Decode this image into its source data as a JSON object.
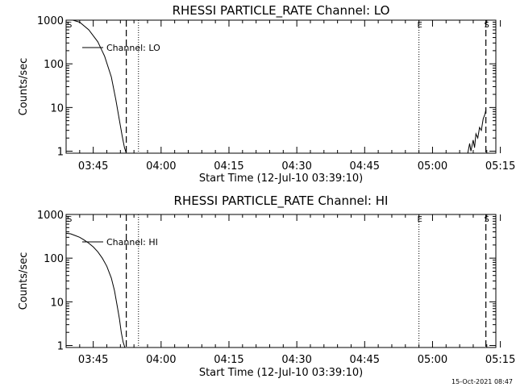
{
  "chart_data": [
    {
      "type": "line",
      "title": "RHESSI PARTICLE_RATE Channel: LO",
      "xlabel": "Start Time (12-Jul-10 03:39:10)",
      "ylabel": "Counts/sec",
      "y_scale": "log",
      "ylim": [
        0.9,
        1000
      ],
      "y_ticks": [
        1,
        10,
        100,
        1000
      ],
      "y_tick_labels": [
        "1",
        "10",
        "100",
        "1000"
      ],
      "xlim_min": [
        0,
        95
      ],
      "x_ticks": [
        6,
        21,
        36,
        51,
        66,
        81,
        96
      ],
      "x_tick_labels": [
        "03:45",
        "04:00",
        "04:15",
        "04:30",
        "04:45",
        "05:00",
        "05:15"
      ],
      "legend": "Channel: LO",
      "legend_position": "top-left",
      "markers": [
        {
          "x": 13.3,
          "style": "dashed",
          "label": ""
        },
        {
          "x": 16.0,
          "style": "dotted",
          "label": ""
        },
        {
          "x": 78.0,
          "style": "dotted",
          "label": "E"
        },
        {
          "x": 92.8,
          "style": "dashed",
          "label": "S"
        }
      ],
      "corner_label": "S",
      "series": [
        {
          "name": "Channel: LO",
          "x": [
            0,
            1.5,
            3,
            5,
            7,
            8.5,
            10,
            11,
            11.8,
            12.4,
            12.9,
            13.3
          ],
          "y": [
            1000,
            1000,
            900,
            600,
            320,
            150,
            50,
            15,
            5,
            2.2,
            1.2,
            0.9
          ]
        },
        {
          "name": "Channel: LO",
          "x": [
            88.8,
            89.2,
            89.5,
            90,
            90.3,
            90.6,
            91,
            91.4,
            91.8,
            92.2,
            92.6,
            92.8
          ],
          "y": [
            0.9,
            1.5,
            1.0,
            1.8,
            1.2,
            2.5,
            2.0,
            3.5,
            3.0,
            5.5,
            7.0,
            9.0
          ]
        }
      ]
    },
    {
      "type": "line",
      "title": "RHESSI PARTICLE_RATE Channel: HI",
      "xlabel": "Start Time (12-Jul-10 03:39:10)",
      "ylabel": "Counts/sec",
      "y_scale": "log",
      "ylim": [
        0.9,
        1000
      ],
      "y_ticks": [
        1,
        10,
        100,
        1000
      ],
      "y_tick_labels": [
        "1",
        "10",
        "100",
        "1000"
      ],
      "xlim_min": [
        0,
        95
      ],
      "x_ticks": [
        6,
        21,
        36,
        51,
        66,
        81,
        96
      ],
      "x_tick_labels": [
        "03:45",
        "04:00",
        "04:15",
        "04:30",
        "04:45",
        "05:00",
        "05:15"
      ],
      "legend": "Channel: HI",
      "legend_position": "top-left",
      "markers": [
        {
          "x": 13.3,
          "style": "dashed",
          "label": ""
        },
        {
          "x": 16.0,
          "style": "dotted",
          "label": ""
        },
        {
          "x": 78.0,
          "style": "dotted",
          "label": "E"
        },
        {
          "x": 92.8,
          "style": "dashed",
          "label": "S"
        }
      ],
      "corner_label": "S",
      "series": [
        {
          "name": "Channel: HI",
          "x": [
            0,
            1,
            2,
            3,
            4,
            5,
            6,
            7,
            8,
            9,
            10,
            10.7,
            11.3,
            11.8,
            12.2,
            12.6,
            13.0
          ],
          "y": [
            370,
            360,
            330,
            300,
            260,
            220,
            180,
            140,
            100,
            65,
            35,
            18,
            8,
            4,
            2,
            1.2,
            0.9
          ]
        }
      ]
    }
  ],
  "footer": {
    "timestamp": "15-Oct-2021 08:47"
  }
}
